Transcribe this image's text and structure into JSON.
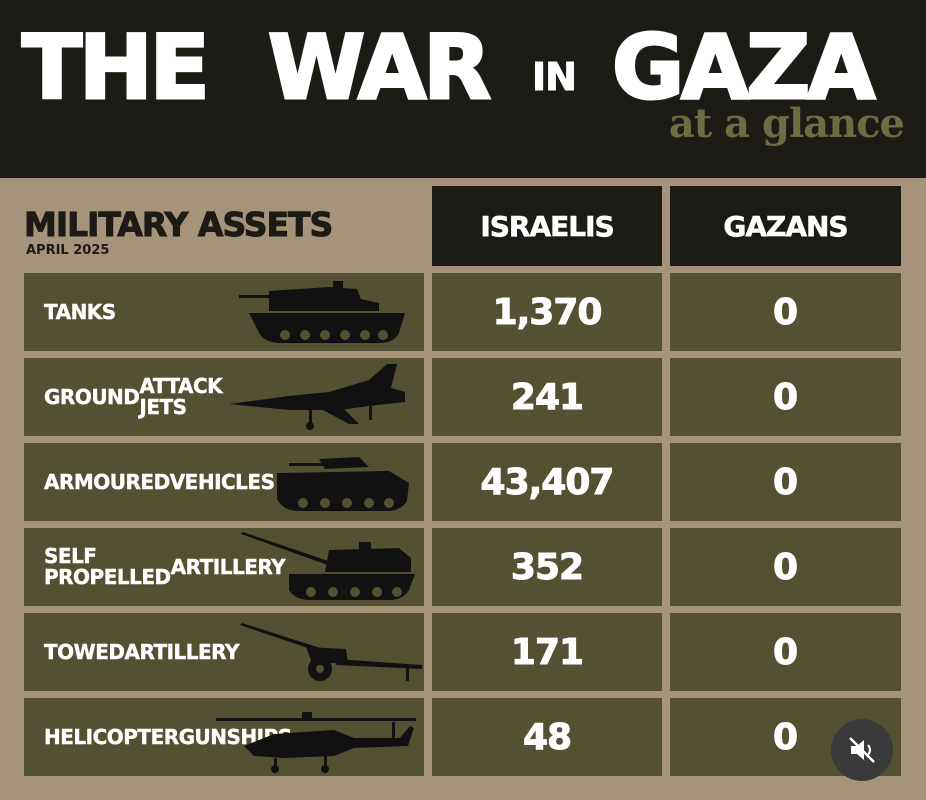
{
  "header": {
    "title_parts": [
      "THE",
      "WAR",
      "IN",
      "GAZA"
    ],
    "subtitle": "at a glance"
  },
  "section": {
    "title": "MILITARY ASSETS",
    "date": "APRIL 2025"
  },
  "columns": [
    "ISRAELIS",
    "GAZANS"
  ],
  "rows": [
    {
      "label_lines": [
        "TANKS"
      ],
      "israelis": "1,370",
      "gazans": "0",
      "icon": "tank-icon"
    },
    {
      "label_lines": [
        "GROUND",
        "ATTACK JETS"
      ],
      "israelis": "241",
      "gazans": "0",
      "icon": "fighter-jet-icon"
    },
    {
      "label_lines": [
        "ARMOURED",
        "VEHICLES"
      ],
      "israelis": "43,407",
      "gazans": "0",
      "icon": "armoured-vehicle-icon"
    },
    {
      "label_lines": [
        "SELF PROPELLED",
        "ARTILLERY"
      ],
      "israelis": "352",
      "gazans": "0",
      "icon": "self-propelled-artillery-icon"
    },
    {
      "label_lines": [
        "TOWED",
        "ARTILLERY"
      ],
      "israelis": "171",
      "gazans": "0",
      "icon": "towed-artillery-icon"
    },
    {
      "label_lines": [
        "HELICOPTER",
        "GUNSHIPS"
      ],
      "israelis": "48",
      "gazans": "0",
      "icon": "helicopter-icon"
    }
  ],
  "colors": {
    "background": "#a5937a",
    "dark": "#1d1b15",
    "cell": "#545133",
    "subtitle": "#6f6b42"
  }
}
